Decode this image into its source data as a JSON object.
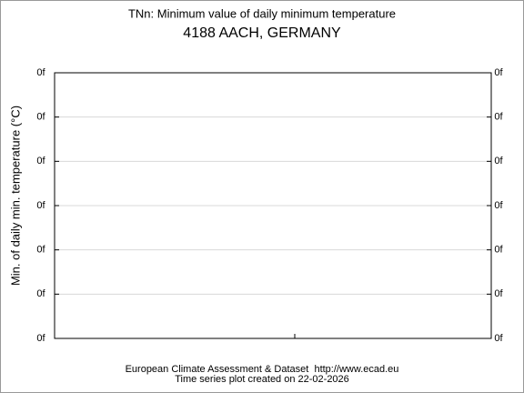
{
  "chart_data": {
    "type": "line",
    "title": "TNn: Minimum value of daily minimum temperature",
    "subtitle": "4188 AACH, GERMANY",
    "ylabel": "Min. of daily min. temperature (°C)",
    "ylim": [
      0,
      6
    ],
    "yticks": [
      {
        "value": 0,
        "label": "0f"
      },
      {
        "value": 1,
        "label": "0f"
      },
      {
        "value": 2,
        "label": "0f"
      },
      {
        "value": 3,
        "label": "0f"
      },
      {
        "value": 4,
        "label": "0f"
      },
      {
        "value": 5,
        "label": "0f"
      },
      {
        "value": 6,
        "label": "0f"
      }
    ],
    "y2lim": [
      0,
      6
    ],
    "y2ticks": [
      {
        "value": 0,
        "label": "0f"
      },
      {
        "value": 1,
        "label": "0f"
      },
      {
        "value": 2,
        "label": "0f"
      },
      {
        "value": 3,
        "label": "0f"
      },
      {
        "value": 4,
        "label": "0f"
      },
      {
        "value": 5,
        "label": "0f"
      },
      {
        "value": 6,
        "label": "0f"
      }
    ],
    "grid": true,
    "credits": [
      "European Climate Assessment & Dataset  http://www.ecad.eu",
      "Time series plot created on 22-02-2026"
    ]
  }
}
